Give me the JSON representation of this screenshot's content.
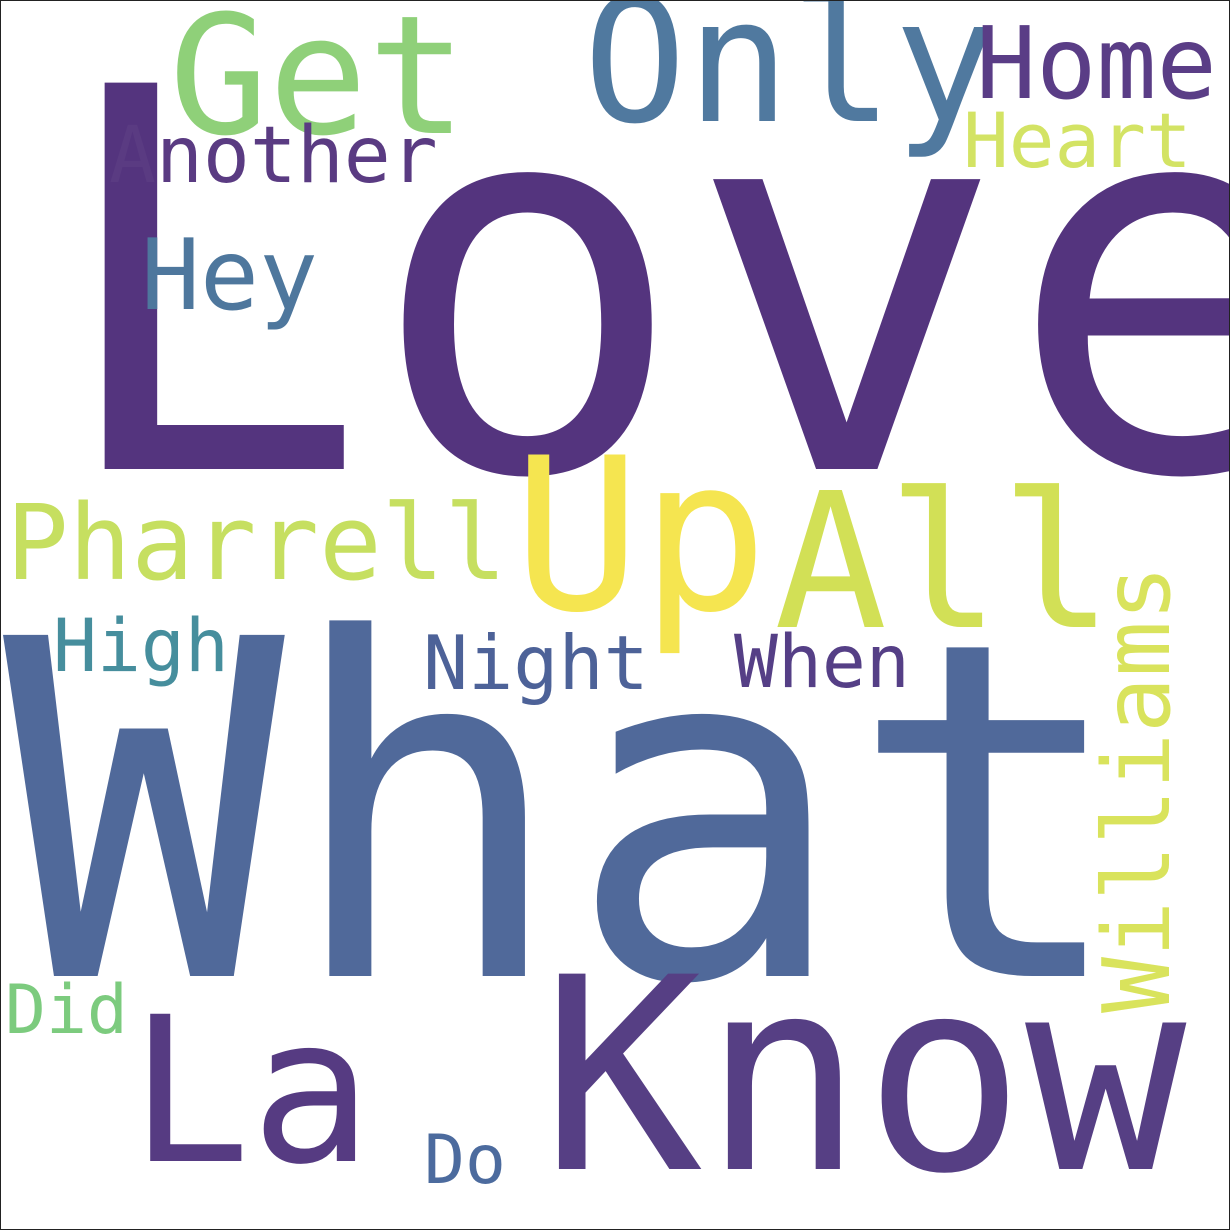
{
  "cloud": {
    "words": [
      {
        "text": "Love",
        "color": "#54347e"
      },
      {
        "text": "What",
        "color": "#50699a"
      },
      {
        "text": "Know",
        "color": "#563f84"
      },
      {
        "text": "Up",
        "color": "#f5e550"
      },
      {
        "text": "All",
        "color": "#d2e056"
      },
      {
        "text": "La",
        "color": "#563b82"
      },
      {
        "text": "Only",
        "color": "#50799f"
      },
      {
        "text": "Get",
        "color": "#8fd079"
      },
      {
        "text": "Pharrell",
        "color": "#c6df60"
      },
      {
        "text": "Williams",
        "color": "#d9e35c"
      },
      {
        "text": "Home",
        "color": "#5a3d86"
      },
      {
        "text": "Hey",
        "color": "#4e779d"
      },
      {
        "text": "Another",
        "color": "#5a3b82"
      },
      {
        "text": "Heart",
        "color": "#d3e364"
      },
      {
        "text": "Night",
        "color": "#4d6298"
      },
      {
        "text": "When",
        "color": "#553f86"
      },
      {
        "text": "High",
        "color": "#468e9d"
      },
      {
        "text": "Did",
        "color": "#7ccb7e"
      },
      {
        "text": "Do",
        "color": "#4c6b9e"
      }
    ]
  }
}
